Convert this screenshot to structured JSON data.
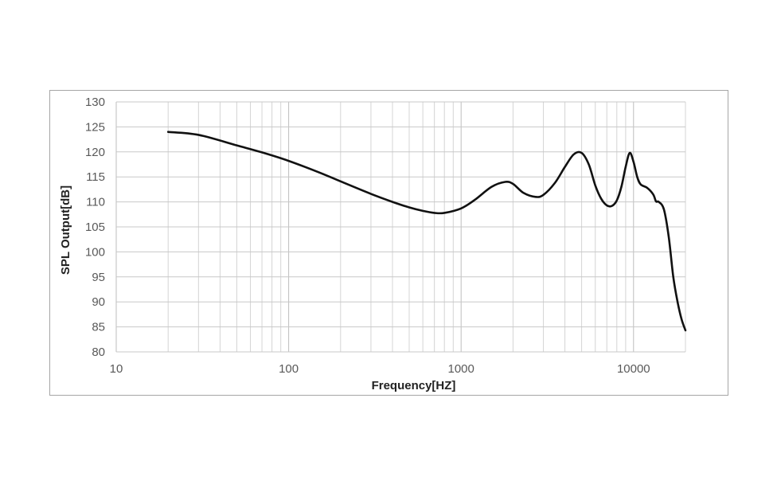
{
  "chart_data": {
    "type": "line",
    "xlabel": "Frequency[HZ]",
    "ylabel": "SPL Output[dB]",
    "xscale": "log",
    "xlim": [
      10,
      20000
    ],
    "ylim": [
      80,
      130
    ],
    "x_ticks": [
      "10",
      "100",
      "1000",
      "10000"
    ],
    "y_ticks": [
      "130",
      "125",
      "120",
      "115",
      "110",
      "105",
      "100",
      "95",
      "90",
      "85",
      "80"
    ],
    "grid": "on",
    "legend": "none",
    "line_color": "#111111",
    "series": [
      {
        "x": [
          20,
          30,
          50,
          70,
          100,
          150,
          200,
          300,
          400,
          500,
          600,
          700,
          800,
          1000,
          1200,
          1500,
          1800,
          2000,
          2300,
          2700,
          3000,
          3500,
          4000,
          4500,
          5000,
          5500,
          6000,
          6500,
          7000,
          7500,
          8000,
          8500,
          9000,
          9500,
          10000,
          10500,
          11000,
          12000,
          13000,
          13500,
          14000,
          15000,
          16000,
          17000,
          18000,
          19000,
          20000
        ],
        "y": [
          124.0,
          123.4,
          121.3,
          119.9,
          118.2,
          115.9,
          114.1,
          111.6,
          110.0,
          108.9,
          108.2,
          107.8,
          107.8,
          108.7,
          110.4,
          113.0,
          114.0,
          113.6,
          111.8,
          111.0,
          111.4,
          113.8,
          117.0,
          119.5,
          119.8,
          117.5,
          113.3,
          110.6,
          109.3,
          109.2,
          110.3,
          113.0,
          117.0,
          119.8,
          118.0,
          115.0,
          113.5,
          112.8,
          111.5,
          110.1,
          110.0,
          108.5,
          103.0,
          95.0,
          90.0,
          86.5,
          84.3
        ]
      }
    ]
  }
}
